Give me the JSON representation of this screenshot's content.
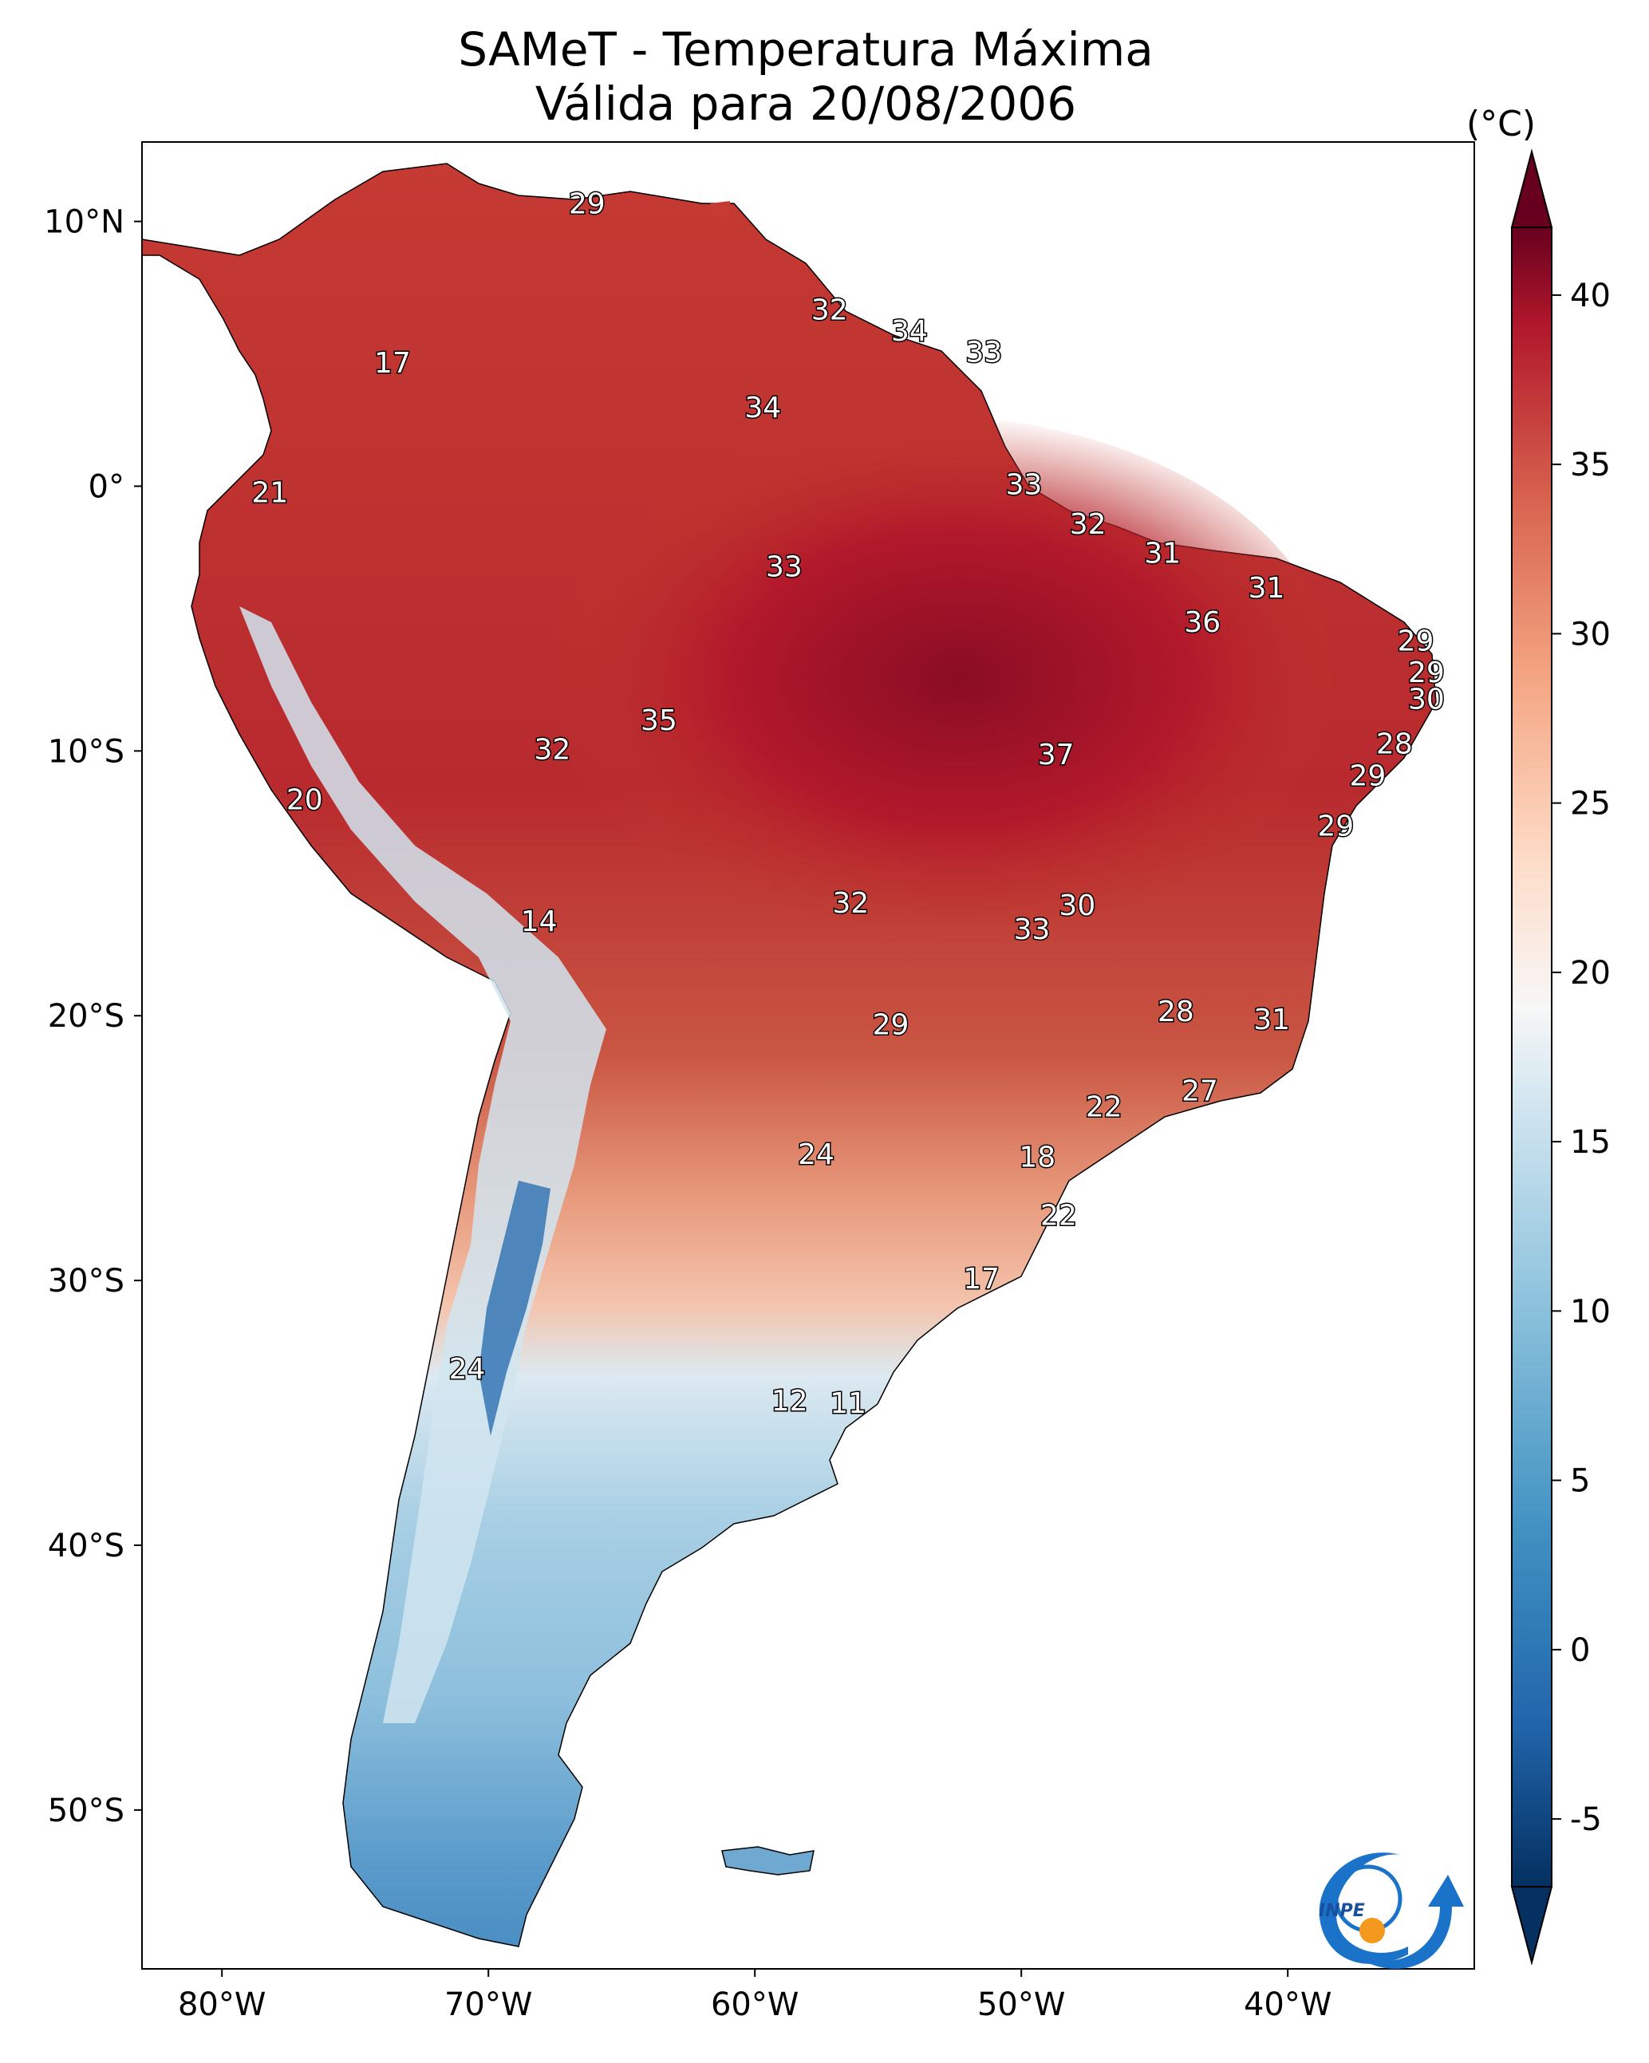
{
  "title_line1": "SAMeT - Temperatura Máxima",
  "title_line2": "Válida para 20/08/2006",
  "colorbar": {
    "unit": "(°C)",
    "ticks": [
      40,
      35,
      30,
      25,
      20,
      15,
      10,
      5,
      0,
      -5
    ],
    "min": -7,
    "max": 42
  },
  "axes": {
    "lat_ticks": [
      {
        "label": "10°N",
        "value": 10
      },
      {
        "label": "0°",
        "value": 0
      },
      {
        "label": "10°S",
        "value": -10
      },
      {
        "label": "20°S",
        "value": -20
      },
      {
        "label": "30°S",
        "value": -30
      },
      {
        "label": "40°S",
        "value": -40
      },
      {
        "label": "50°S",
        "value": -50
      }
    ],
    "lon_ticks": [
      {
        "label": "80°W",
        "value": -80
      },
      {
        "label": "70°W",
        "value": -70
      },
      {
        "label": "60°W",
        "value": -60
      },
      {
        "label": "50°W",
        "value": -50
      },
      {
        "label": "40°W",
        "value": -40
      }
    ],
    "lon_range": [
      -83,
      -33
    ],
    "lat_range": [
      -56,
      13
    ]
  },
  "temperature_labels": [
    {
      "value": "29",
      "lon": -66.3,
      "lat": 10.6
    },
    {
      "value": "32",
      "lon": -57.2,
      "lat": 6.6
    },
    {
      "value": "34",
      "lon": -54.2,
      "lat": 5.8
    },
    {
      "value": "33",
      "lon": -51.4,
      "lat": 5.0
    },
    {
      "value": "17",
      "lon": -73.6,
      "lat": 4.6
    },
    {
      "value": "34",
      "lon": -59.7,
      "lat": 2.9
    },
    {
      "value": "21",
      "lon": -78.2,
      "lat": -0.3
    },
    {
      "value": "33",
      "lon": -49.9,
      "lat": -0.0
    },
    {
      "value": "32",
      "lon": -47.5,
      "lat": -1.5
    },
    {
      "value": "31",
      "lon": -44.7,
      "lat": -2.6
    },
    {
      "value": "33",
      "lon": -58.9,
      "lat": -3.1
    },
    {
      "value": "31",
      "lon": -40.8,
      "lat": -3.9
    },
    {
      "value": "36",
      "lon": -43.2,
      "lat": -5.2
    },
    {
      "value": "29",
      "lon": -35.2,
      "lat": -5.9
    },
    {
      "value": "29",
      "lon": -34.8,
      "lat": -7.1
    },
    {
      "value": "30",
      "lon": -34.8,
      "lat": -8.1
    },
    {
      "value": "35",
      "lon": -63.6,
      "lat": -8.9
    },
    {
      "value": "28",
      "lon": -36.0,
      "lat": -9.8
    },
    {
      "value": "32",
      "lon": -67.6,
      "lat": -10.0
    },
    {
      "value": "37",
      "lon": -48.7,
      "lat": -10.2
    },
    {
      "value": "29",
      "lon": -37.0,
      "lat": -11.0
    },
    {
      "value": "20",
      "lon": -76.9,
      "lat": -11.9
    },
    {
      "value": "29",
      "lon": -38.2,
      "lat": -12.9
    },
    {
      "value": "30",
      "lon": -47.9,
      "lat": -15.9
    },
    {
      "value": "32",
      "lon": -56.4,
      "lat": -15.8
    },
    {
      "value": "14",
      "lon": -68.1,
      "lat": -16.5
    },
    {
      "value": "33",
      "lon": -49.6,
      "lat": -16.8
    },
    {
      "value": "28",
      "lon": -44.2,
      "lat": -19.9
    },
    {
      "value": "31",
      "lon": -40.6,
      "lat": -20.2
    },
    {
      "value": "29",
      "lon": -54.9,
      "lat": -20.4
    },
    {
      "value": "27",
      "lon": -43.3,
      "lat": -22.9
    },
    {
      "value": "22",
      "lon": -46.9,
      "lat": -23.5
    },
    {
      "value": "24",
      "lon": -57.7,
      "lat": -25.3
    },
    {
      "value": "18",
      "lon": -49.4,
      "lat": -25.4
    },
    {
      "value": "22",
      "lon": -48.6,
      "lat": -27.6
    },
    {
      "value": "17",
      "lon": -51.5,
      "lat": -30.0
    },
    {
      "value": "24",
      "lon": -70.8,
      "lat": -33.4
    },
    {
      "value": "12",
      "lon": -58.7,
      "lat": -34.6
    },
    {
      "value": "11",
      "lon": -56.5,
      "lat": -34.7
    }
  ],
  "logo": {
    "text": "INPE"
  }
}
